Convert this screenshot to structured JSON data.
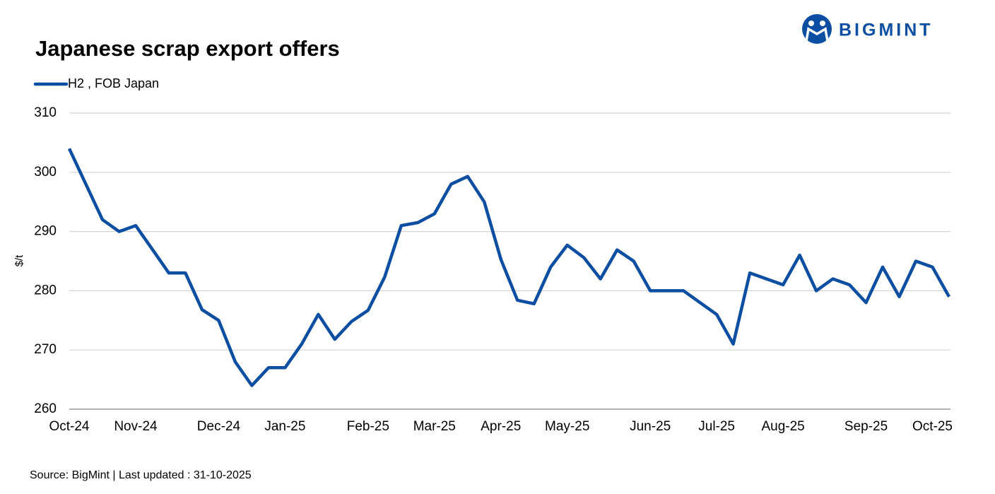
{
  "chart_data": {
    "type": "line",
    "title": "Japanese scrap export offers",
    "brand": "BIGMINT",
    "y_label": "$/t",
    "source": "Source: BigMint  | Last updated : 31-10-2025",
    "categories": [
      "Oct-24",
      null,
      null,
      null,
      "Nov-24",
      null,
      null,
      null,
      null,
      "Dec-24",
      null,
      null,
      null,
      "Jan-25",
      null,
      null,
      null,
      null,
      "Feb-25",
      null,
      null,
      null,
      "Mar-25",
      null,
      null,
      null,
      "Apr-25",
      null,
      null,
      null,
      "May-25",
      null,
      null,
      null,
      null,
      "Jun-25",
      null,
      null,
      null,
      "Jul-25",
      null,
      null,
      null,
      "Aug-25",
      null,
      null,
      null,
      null,
      "Sep-25",
      null,
      null,
      null,
      "Oct-25",
      null
    ],
    "series": [
      {
        "name": "H2 , FOB Japan",
        "color": "#0b4ea2",
        "values": [
          304,
          298,
          292,
          290,
          291,
          287,
          283,
          283,
          276.8,
          275,
          268,
          264,
          267,
          267,
          271,
          276,
          271.8,
          274.8,
          276.7,
          282.3,
          291,
          291.5,
          293,
          298,
          299.3,
          295,
          285.3,
          278.4,
          277.8,
          284,
          287.7,
          285.6,
          282,
          286.9,
          285,
          280,
          280,
          280,
          278,
          276,
          271,
          283,
          282,
          281,
          286,
          280,
          282,
          281,
          278,
          284,
          279,
          285,
          284,
          279
        ]
      }
    ],
    "ylim": [
      260,
      310
    ],
    "yticks": [
      260,
      270,
      280,
      290,
      300,
      310
    ],
    "grid": true,
    "legend": "top-left"
  }
}
